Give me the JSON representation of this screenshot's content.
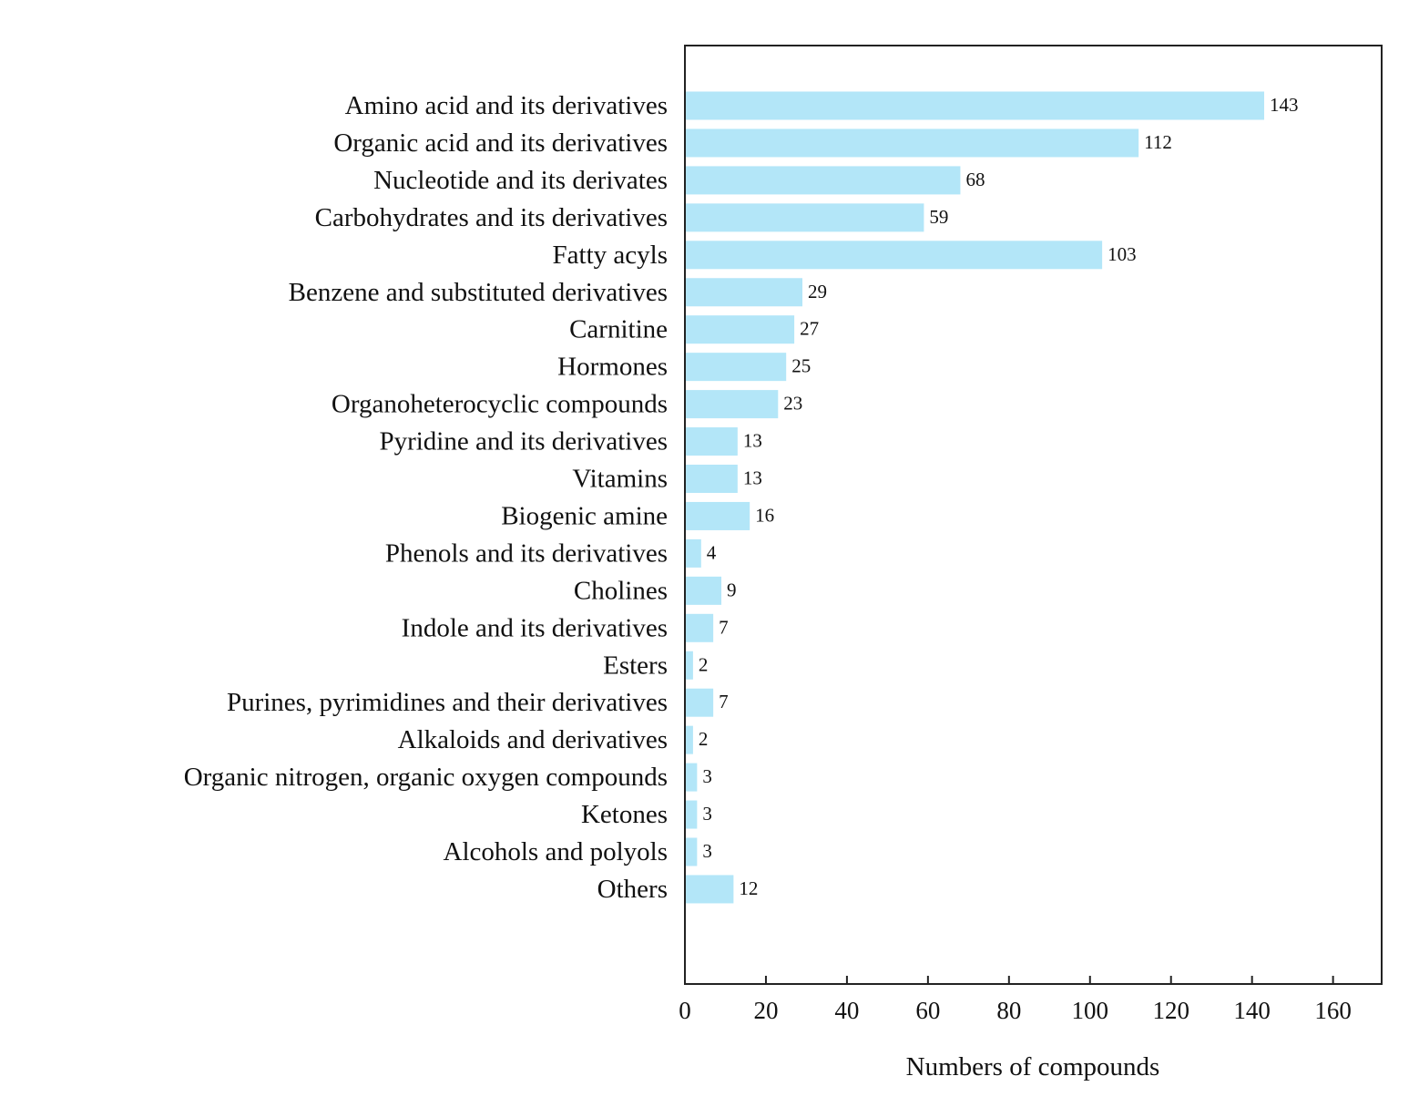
{
  "chart_data": {
    "type": "bar",
    "orientation": "horizontal",
    "categories": [
      "Amino acid and its derivatives",
      "Organic acid and its derivatives",
      "Nucleotide and its derivates",
      "Carbohydrates and its derivatives",
      "Fatty acyls",
      "Benzene and substituted derivatives",
      "Carnitine",
      "Hormones",
      "Organoheterocyclic compounds",
      "Pyridine and its derivatives",
      "Vitamins",
      "Biogenic amine",
      "Phenols and its derivatives",
      "Cholines",
      "Indole and its derivatives",
      "Esters",
      "Purines, pyrimidines and their derivatives",
      "Alkaloids and derivatives",
      "Organic nitrogen, organic oxygen compounds",
      "Ketones",
      "Alcohols and polyols",
      "Others"
    ],
    "values": [
      143,
      112,
      68,
      59,
      103,
      29,
      27,
      25,
      23,
      13,
      13,
      16,
      4,
      9,
      7,
      2,
      7,
      2,
      3,
      3,
      3,
      12
    ],
    "title": "",
    "xlabel": "Numbers of compounds",
    "ylabel": "",
    "xlim": [
      0,
      172
    ],
    "xticks": [
      0,
      20,
      40,
      60,
      80,
      100,
      120,
      140,
      160
    ],
    "bar_color": "#b3e6f8",
    "grid": false,
    "legend": false
  }
}
